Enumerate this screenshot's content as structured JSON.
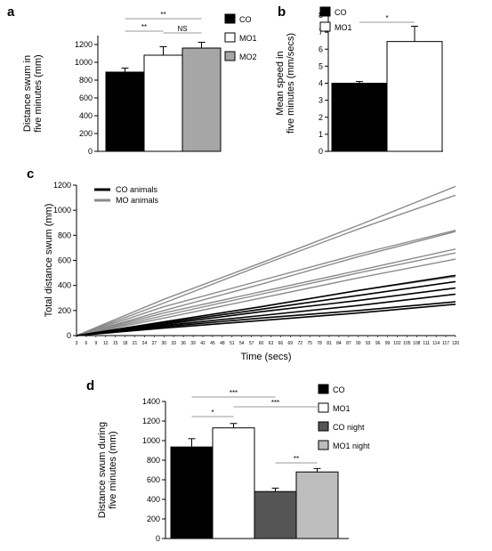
{
  "chart_data": [
    {
      "panel": "a",
      "type": "bar",
      "categories": [
        "CO",
        "MO1",
        "MO2"
      ],
      "values": [
        890,
        1080,
        1160
      ],
      "errors": [
        45,
        95,
        65
      ],
      "ylabel_lines": [
        "Distance swum in",
        "five minutes (mm)"
      ],
      "ylim": [
        0,
        1300
      ],
      "yticks": [
        0,
        200,
        400,
        600,
        800,
        1000,
        1200
      ],
      "legend": [
        "CO",
        "MO1",
        "MO2"
      ],
      "colors": [
        "#000000",
        "#ffffff",
        "#a6a6a6"
      ],
      "significance": [
        {
          "from": 0,
          "to": 2,
          "label": "**"
        },
        {
          "from": 0,
          "to": 1,
          "label": "**"
        },
        {
          "from": 1,
          "to": 2,
          "label": "NS"
        }
      ]
    },
    {
      "panel": "b",
      "type": "bar",
      "categories": [
        "CO",
        "MO1"
      ],
      "values": [
        4.0,
        6.45
      ],
      "errors": [
        0.1,
        0.9
      ],
      "ylabel_lines": [
        "Mean speed in",
        "five minutes (mm/secs)"
      ],
      "ylim": [
        0,
        8
      ],
      "yticks": [
        0,
        1,
        2,
        3,
        4,
        5,
        6,
        7,
        8
      ],
      "legend": [
        "CO",
        "MO1"
      ],
      "colors": [
        "#000000",
        "#ffffff"
      ],
      "significance": [
        {
          "from": 0,
          "to": 1,
          "label": "*"
        }
      ]
    },
    {
      "panel": "c",
      "type": "line",
      "ylabel": "Total distance swum (mm)",
      "xlabel": "Time (secs)",
      "ylim": [
        0,
        1200
      ],
      "yticks": [
        0,
        200,
        400,
        600,
        800,
        1000,
        1200
      ],
      "xlim": [
        3,
        120
      ],
      "xticks": [
        3,
        6,
        9,
        12,
        15,
        18,
        21,
        24,
        27,
        30,
        33,
        36,
        39,
        42,
        45,
        48,
        51,
        54,
        57,
        60,
        63,
        66,
        69,
        72,
        75,
        78,
        81,
        84,
        87,
        90,
        93,
        96,
        99,
        102,
        105,
        108,
        111,
        114,
        117,
        120
      ],
      "legend": [
        "CO animals",
        "MO animals"
      ],
      "colors": {
        "CO animals": "#000000",
        "MO animals": "#8a8a8a"
      },
      "series": [
        {
          "group": "MO animals",
          "x": [
            3,
            30,
            60,
            90,
            120
          ],
          "y": [
            0,
            290,
            580,
            880,
            1190
          ]
        },
        {
          "group": "MO animals",
          "x": [
            3,
            30,
            60,
            90,
            120
          ],
          "y": [
            0,
            260,
            560,
            850,
            1120
          ]
        },
        {
          "group": "MO animals",
          "x": [
            3,
            30,
            60,
            90,
            120
          ],
          "y": [
            0,
            230,
            440,
            650,
            840
          ]
        },
        {
          "group": "MO animals",
          "x": [
            3,
            30,
            60,
            90,
            120
          ],
          "y": [
            0,
            200,
            410,
            630,
            830
          ]
        },
        {
          "group": "MO animals",
          "x": [
            3,
            30,
            60,
            90,
            120
          ],
          "y": [
            0,
            180,
            350,
            520,
            690
          ]
        },
        {
          "group": "MO animals",
          "x": [
            3,
            30,
            60,
            90,
            120
          ],
          "y": [
            0,
            160,
            330,
            500,
            660
          ]
        },
        {
          "group": "MO animals",
          "x": [
            3,
            30,
            60,
            90,
            120
          ],
          "y": [
            0,
            140,
            300,
            460,
            610
          ]
        },
        {
          "group": "MO animals",
          "x": [
            3,
            30,
            60,
            90,
            120
          ],
          "y": [
            0,
            110,
            230,
            360,
            470
          ]
        },
        {
          "group": "CO animals",
          "x": [
            3,
            30,
            60,
            90,
            120
          ],
          "y": [
            0,
            110,
            230,
            360,
            480
          ]
        },
        {
          "group": "CO animals",
          "x": [
            3,
            30,
            60,
            90,
            120
          ],
          "y": [
            0,
            100,
            210,
            320,
            430
          ]
        },
        {
          "group": "CO animals",
          "x": [
            3,
            30,
            60,
            90,
            120
          ],
          "y": [
            0,
            90,
            190,
            280,
            380
          ]
        },
        {
          "group": "CO animals",
          "x": [
            3,
            30,
            60,
            90,
            120
          ],
          "y": [
            0,
            80,
            160,
            240,
            330
          ]
        },
        {
          "group": "CO animals",
          "x": [
            3,
            30,
            60,
            90,
            120
          ],
          "y": [
            0,
            70,
            140,
            200,
            270
          ]
        },
        {
          "group": "CO animals",
          "x": [
            3,
            30,
            60,
            90,
            120
          ],
          "y": [
            0,
            60,
            120,
            180,
            250
          ]
        }
      ]
    },
    {
      "panel": "d",
      "type": "bar",
      "categories": [
        "CO",
        "MO1",
        "CO night",
        "MO1 night"
      ],
      "values": [
        935,
        1130,
        480,
        680
      ],
      "errors": [
        85,
        45,
        35,
        35
      ],
      "ylabel_lines": [
        "Distance swum during",
        "five minutes (mm)"
      ],
      "ylim": [
        0,
        1400
      ],
      "yticks": [
        0,
        200,
        400,
        600,
        800,
        1000,
        1200,
        1400
      ],
      "legend": [
        "CO",
        "MO1",
        "CO night",
        "MO1 night"
      ],
      "colors": [
        "#000000",
        "#ffffff",
        "#555555",
        "#bdbdbd"
      ],
      "significance": [
        {
          "from": 0,
          "to": 2,
          "label": "***"
        },
        {
          "from": 0,
          "to": 1,
          "label": "*"
        },
        {
          "from": 1,
          "to": 3,
          "label": "***"
        },
        {
          "from": 2,
          "to": 3,
          "label": "**"
        }
      ]
    }
  ],
  "panel_letters": [
    "a",
    "b",
    "c",
    "d"
  ]
}
